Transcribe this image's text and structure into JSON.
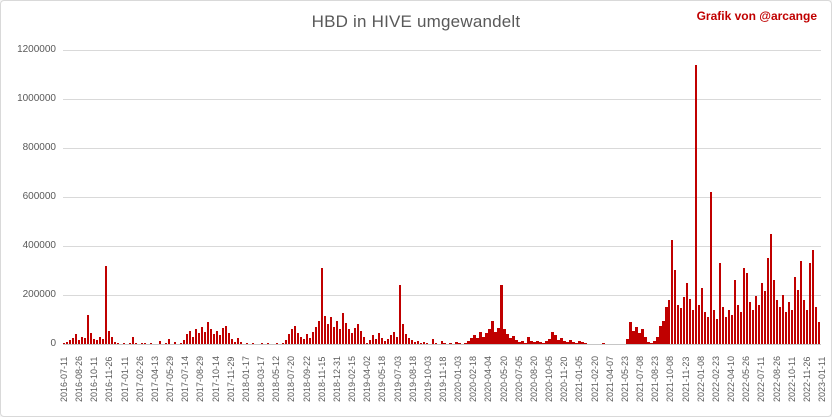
{
  "title": "HBD in HIVE umgewandelt",
  "credit": "Grafik von @arcange",
  "colors": {
    "bar": "#c00000",
    "title_text": "#595959",
    "axis_text": "#595959",
    "gridline": "#d9d9d9",
    "credit_text": "#c00000",
    "border": "#d9d9d9",
    "background": "#ffffff"
  },
  "chart_data": {
    "type": "bar",
    "title": "HBD in HIVE umgewandelt",
    "xlabel": "",
    "ylabel": "",
    "ylim": [
      0,
      1200000
    ],
    "grid": true,
    "legend": false,
    "y_ticks": [
      1200000,
      1000000,
      800000,
      600000,
      400000,
      200000,
      0
    ],
    "y_tick_labels": [
      "1200000",
      "1000000",
      "800000",
      "600000",
      "400000",
      "200000",
      "0"
    ],
    "x_tick_labels": [
      "2016-07-11",
      "2016-08-26",
      "2016-10-11",
      "2016-11-26",
      "2017-01-11",
      "2017-02-26",
      "2017-04-13",
      "2017-05-29",
      "2017-07-14",
      "2017-08-29",
      "2017-10-14",
      "2017-11-29",
      "2018-01-17",
      "2018-03-17",
      "2018-05-12",
      "2018-07-20",
      "2018-09-22",
      "2018-11-15",
      "2018-12-31",
      "2019-02-15",
      "2019-04-02",
      "2019-05-18",
      "2019-07-03",
      "2019-08-18",
      "2019-10-03",
      "2019-11-18",
      "2020-01-03",
      "2020-02-18",
      "2020-04-04",
      "2020-05-20",
      "2020-07-05",
      "2020-08-20",
      "2020-10-05",
      "2020-11-20",
      "2021-01-05",
      "2021-02-20",
      "2021-04-07",
      "2021-05-23",
      "2021-07-08",
      "2021-08-23",
      "2021-10-08",
      "2021-11-23",
      "2022-01-08",
      "2022-02-23",
      "2022-04-10",
      "2022-05-26",
      "2022-07-11",
      "2022-08-26",
      "2022-10-11",
      "2022-11-26",
      "2023-01-11"
    ],
    "notable_peaks": [
      {
        "x": "2016-11-26",
        "value": 320000
      },
      {
        "x": "2018-11-15",
        "value": 310000
      },
      {
        "x": "2019-07-03",
        "value": 242000
      },
      {
        "x": "2020-05-20",
        "value": 242000
      },
      {
        "x": "2021-10-08",
        "value": 426000
      },
      {
        "x": "2021-12",
        "value": 1140000
      },
      {
        "x": "2022-02-23",
        "value": 620000
      },
      {
        "x": "2022-08-26",
        "value": 450000
      },
      {
        "x": "2023-01-11",
        "value": 385000
      }
    ],
    "values": [
      2000,
      8000,
      15000,
      25000,
      40000,
      18000,
      30000,
      25000,
      120000,
      45000,
      20000,
      15000,
      30000,
      20000,
      320000,
      55000,
      30000,
      8000,
      3000,
      0,
      4000,
      0,
      5000,
      30000,
      4000,
      0,
      6000,
      3000,
      0,
      2000,
      0,
      0,
      12000,
      0,
      3000,
      22000,
      0,
      8000,
      0,
      4000,
      15000,
      40000,
      55000,
      30000,
      60000,
      45000,
      70000,
      50000,
      91000,
      60000,
      40000,
      55000,
      35000,
      65000,
      74000,
      45000,
      20000,
      10000,
      25000,
      10000,
      0,
      2000,
      0,
      3000,
      0,
      0,
      2000,
      0,
      3000,
      0,
      0,
      2000,
      0,
      4000,
      15000,
      40000,
      60000,
      75000,
      45000,
      30000,
      20000,
      40000,
      25000,
      50000,
      70000,
      95000,
      310000,
      115000,
      80000,
      110000,
      70000,
      95000,
      60000,
      127000,
      85000,
      60000,
      45000,
      65000,
      80000,
      55000,
      30000,
      5000,
      15000,
      35000,
      20000,
      45000,
      25000,
      12000,
      20000,
      35000,
      50000,
      30000,
      242000,
      82000,
      40000,
      25000,
      15000,
      8000,
      12000,
      5000,
      10000,
      6000,
      0,
      20000,
      4000,
      0,
      12000,
      3000,
      0,
      5000,
      0,
      8000,
      3000,
      0,
      6000,
      12000,
      25000,
      35000,
      25000,
      50000,
      30000,
      45000,
      60000,
      94000,
      50000,
      65000,
      242000,
      60000,
      40000,
      25000,
      32000,
      18000,
      10000,
      14000,
      6000,
      30000,
      12000,
      7000,
      14000,
      9000,
      5000,
      11000,
      20000,
      50000,
      35000,
      16000,
      26000,
      12000,
      8000,
      16000,
      10000,
      6000,
      13000,
      8000,
      4000,
      0,
      0,
      0,
      0,
      0,
      2000,
      0,
      0,
      0,
      0,
      0,
      0,
      0,
      20000,
      88000,
      55000,
      70000,
      45000,
      62000,
      30000,
      8000,
      3000,
      14000,
      30000,
      75000,
      95000,
      150000,
      180000,
      426000,
      300000,
      160000,
      145000,
      190000,
      250000,
      185000,
      140000,
      1140000,
      160000,
      230000,
      130000,
      110000,
      620000,
      140000,
      100000,
      330000,
      150000,
      110000,
      140000,
      120000,
      260000,
      160000,
      130000,
      310000,
      290000,
      170000,
      140000,
      195000,
      160000,
      250000,
      215000,
      350000,
      450000,
      260000,
      180000,
      150000,
      200000,
      130000,
      170000,
      140000,
      275000,
      220000,
      340000,
      180000,
      140000,
      330000,
      385000,
      150000,
      90000
    ]
  }
}
